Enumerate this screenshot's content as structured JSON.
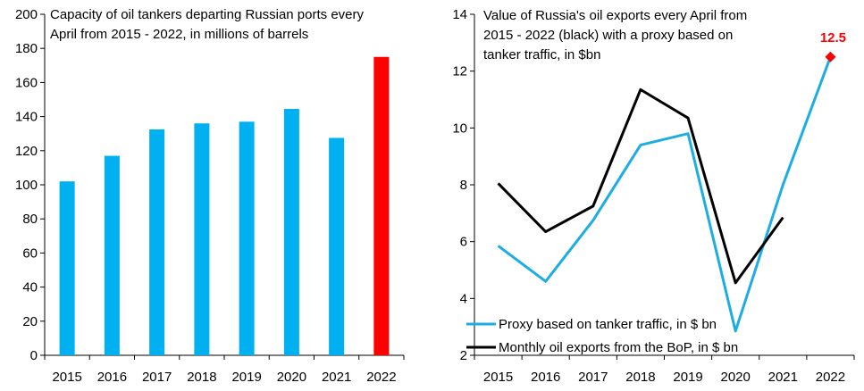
{
  "chart_data": [
    {
      "type": "bar",
      "title": "Capacity of oil tankers departing Russian ports every April from 2015 - 2022, in millions of barrels",
      "title_lines": [
        "Capacity of oil tankers departing Russian ports every",
        "April from 2015 - 2022, in millions of barrels"
      ],
      "categories": [
        "2015",
        "2016",
        "2017",
        "2018",
        "2019",
        "2020",
        "2021",
        "2022"
      ],
      "values": [
        102,
        117,
        132.5,
        136,
        137,
        144.5,
        127.5,
        175
      ],
      "colors": [
        "#00B0F0",
        "#00B0F0",
        "#00B0F0",
        "#00B0F0",
        "#00B0F0",
        "#00B0F0",
        "#00B0F0",
        "#FF0000"
      ],
      "xlabel": "",
      "ylabel": "",
      "ylim": [
        0,
        200
      ],
      "yticks": [
        0,
        20,
        40,
        60,
        80,
        100,
        120,
        140,
        160,
        180,
        200
      ],
      "grid": false
    },
    {
      "type": "line",
      "title": "Value of Russia's oil exports every April from 2015 - 2022 (black) with a proxy based on tanker traffic, in $bn",
      "title_lines": [
        "Value of Russia's oil exports every April from",
        "2015 - 2022 (black) with a proxy based on",
        "tanker traffic, in $bn"
      ],
      "categories": [
        "2015",
        "2016",
        "2017",
        "2018",
        "2019",
        "2020",
        "2021",
        "2022"
      ],
      "series": [
        {
          "name": "Proxy based on tanker traffic, in $ bn",
          "color": "#1CADE4",
          "values": [
            5.85,
            4.6,
            6.75,
            9.4,
            9.8,
            2.85,
            8.0,
            12.5
          ]
        },
        {
          "name": "Monthly oil exports from the BoP, in $ bn",
          "color": "#000000",
          "values": [
            8.05,
            6.35,
            7.25,
            11.35,
            10.35,
            4.55,
            6.85,
            null
          ]
        }
      ],
      "annotation": {
        "label": "12.5",
        "category": "2022",
        "value": 12.5,
        "color": "#FF0000",
        "marker": "diamond"
      },
      "xlabel": "",
      "ylabel": "",
      "ylim": [
        2,
        14
      ],
      "yticks": [
        2,
        4,
        6,
        8,
        10,
        12,
        14
      ],
      "legend": "bottom-left",
      "grid": false
    }
  ]
}
